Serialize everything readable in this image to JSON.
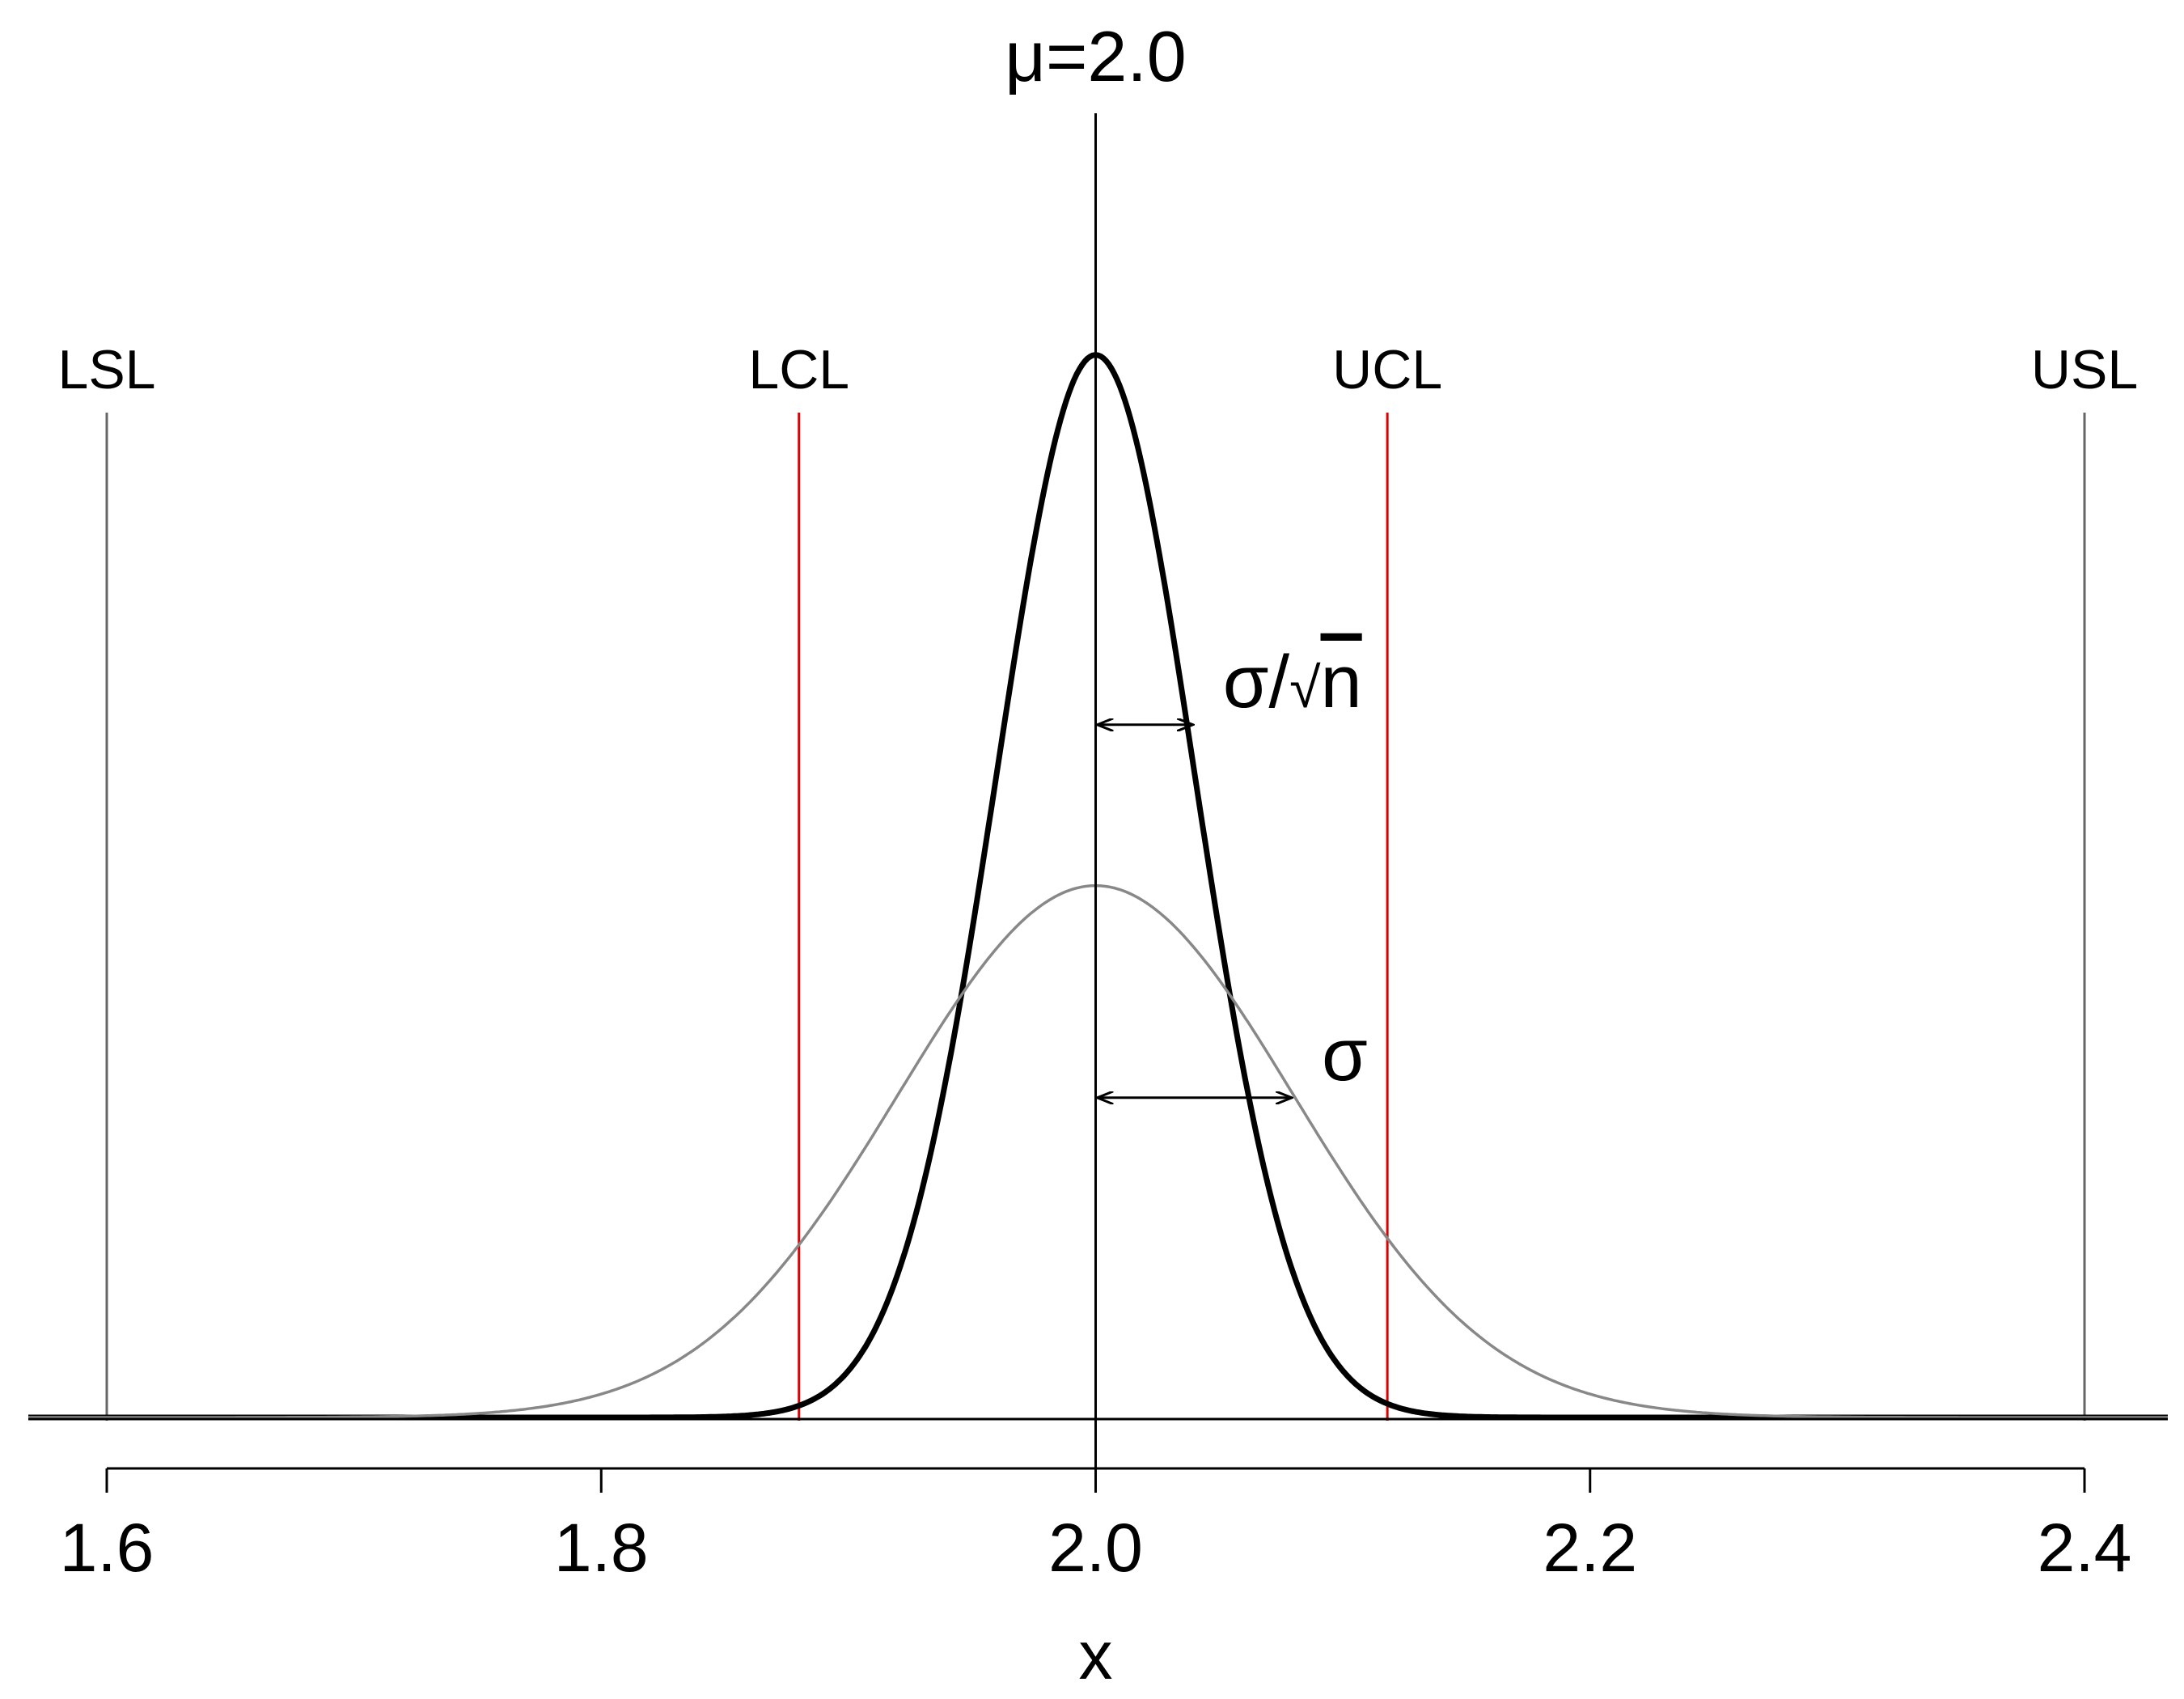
{
  "chart_data": {
    "type": "line",
    "title": "",
    "xlabel": "x",
    "ylabel": "",
    "xlim": [
      1.6,
      2.4
    ],
    "ylim": [
      0,
      13.3
    ],
    "xticks": [
      "1.6",
      "1.8",
      "2.0",
      "2.2",
      "2.4"
    ],
    "x_tick_values": [
      1.6,
      1.8,
      2.0,
      2.2,
      2.4
    ],
    "mean": {
      "label": "μ=2.0",
      "value": 2.0
    },
    "series": [
      {
        "distribution": "normal",
        "mu": 2.0,
        "sigma": 0.04,
        "peak": 9.97,
        "color": "#000000",
        "weight": "thick"
      },
      {
        "distribution": "normal",
        "mu": 2.0,
        "sigma": 0.08,
        "peak": 4.99,
        "color": "#888888",
        "weight": "thin"
      }
    ],
    "limit_lines": [
      {
        "label": "LSL",
        "x": 1.6,
        "color": "#666666"
      },
      {
        "label": "LCL",
        "x": 1.88,
        "color": "#dd0000"
      },
      {
        "label": "UCL",
        "x": 2.118,
        "color": "#dd0000"
      },
      {
        "label": "USL",
        "x": 2.4,
        "color": "#666666"
      }
    ],
    "annotations": [
      {
        "label_main": "σ/",
        "label_radical": "√",
        "label_n": "n",
        "from": 2.0,
        "to": 2.04,
        "y": 6.5
      },
      {
        "label": "σ",
        "from": 2.0,
        "to": 2.08,
        "y": 3.0
      }
    ],
    "grid": false,
    "legend": "none"
  }
}
